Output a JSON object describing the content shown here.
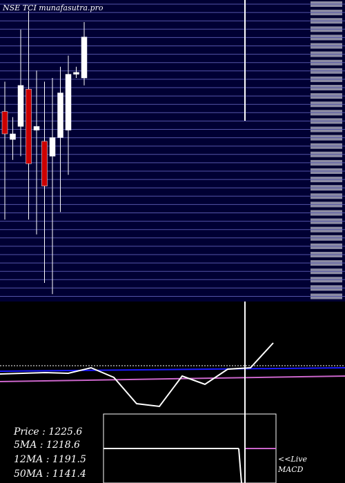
{
  "header": {
    "ticker_label": "NSE TCI munafasutra.pro"
  },
  "legend": {
    "price": "Price   : 1225.6",
    "ma5": "5MA : 1218.6",
    "ma12": "12MA : 1191.5",
    "ma50": "50MA : 1141.4"
  },
  "live_label": "<<Live",
  "macd_label": "MACD",
  "colors": {
    "background": "#000000",
    "panel_background": "#000033",
    "grid_line": "#5555aa",
    "up_candle": "#ffffff",
    "down_candle": "#cc0000",
    "wick": "#ffffff",
    "ma_blue": "#1a1aff",
    "ma_pink": "#cc66cc",
    "text": "#ffffff"
  },
  "chart_data": [
    {
      "type": "candlestick",
      "title": "NSE TCI munafasutra.pro",
      "series": [
        {
          "name": "",
          "values": [
            {
              "o": 1210,
              "h": 1290,
              "l": 920,
              "c": 1150
            },
            {
              "o": 1135,
              "h": 1195,
              "l": 1080,
              "c": 1150
            },
            {
              "o": 1170,
              "h": 1430,
              "l": 1090,
              "c": 1280
            },
            {
              "o": 1270,
              "h": 1480,
              "l": 920,
              "c": 1070
            },
            {
              "o": 1160,
              "h": 1320,
              "l": 880,
              "c": 1170
            },
            {
              "o": 1130,
              "h": 1290,
              "l": 750,
              "c": 1010
            },
            {
              "o": 1090,
              "h": 1300,
              "l": 720,
              "c": 1140
            },
            {
              "o": 1140,
              "h": 1330,
              "l": 940,
              "c": 1260
            },
            {
              "o": 1160,
              "h": 1360,
              "l": 1040,
              "c": 1310
            },
            {
              "o": 1310,
              "h": 1330,
              "l": 1300,
              "c": 1315
            },
            {
              "o": 1300,
              "h": 1450,
              "l": 1280,
              "c": 1410
            }
          ]
        }
      ]
    },
    {
      "type": "line",
      "title": "MACD",
      "series": [
        {
          "name": "",
          "values": [
            3,
            4,
            5,
            4,
            12,
            -2,
            -40,
            -44,
            0,
            -12,
            10,
            12,
            48
          ]
        },
        {
          "name": "",
          "values": [
            12,
            12,
            12,
            12,
            12,
            12,
            12,
            12,
            12,
            12,
            12,
            12,
            12
          ]
        },
        {
          "name": "",
          "values": [
            6,
            6,
            6,
            6,
            6,
            6,
            6,
            6,
            6,
            6,
            6,
            6,
            6
          ]
        }
      ]
    }
  ]
}
